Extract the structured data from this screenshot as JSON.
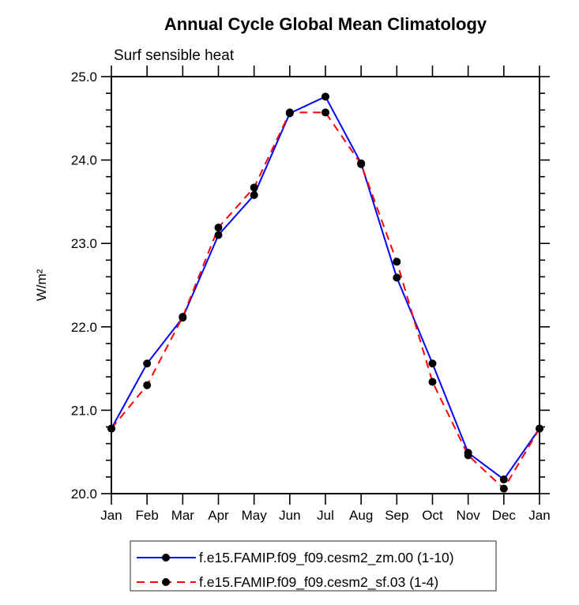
{
  "chart_data": {
    "type": "line",
    "title": "Annual Cycle Global Mean Climatology",
    "subtitle": "Surf sensible heat",
    "ylabel": "W/m²",
    "xlabel": "",
    "x_categories": [
      "Jan",
      "Feb",
      "Mar",
      "Apr",
      "May",
      "Jun",
      "Jul",
      "Aug",
      "Sep",
      "Oct",
      "Nov",
      "Dec",
      "Jan"
    ],
    "ylim": [
      20.0,
      25.0
    ],
    "y_major_ticks": [
      20.0,
      21.0,
      22.0,
      23.0,
      24.0,
      25.0
    ],
    "y_major_tick_labels": [
      "20.0",
      "21.0",
      "22.0",
      "23.0",
      "24.0",
      "25.0"
    ],
    "y_minor_tick_step": 0.2,
    "grid": false,
    "axis_color": "#000000",
    "marker_color": "#000000",
    "legend_position": "bottom",
    "series": [
      {
        "name": "f.e15.FAMIP.f09_f09.cesm2_zm.00 (1-10)",
        "color": "#0000ff",
        "line_style": "solid",
        "marker": "filled-circle",
        "values": [
          20.78,
          21.56,
          22.11,
          23.1,
          23.58,
          24.56,
          24.76,
          23.96,
          22.59,
          21.56,
          20.49,
          20.17,
          20.78
        ]
      },
      {
        "name": "f.e15.FAMIP.f09_f09.cesm2_sf.03 (1-4)",
        "color": "#ff0000",
        "line_style": "dashed",
        "marker": "filled-circle",
        "values": [
          20.78,
          21.3,
          22.12,
          23.19,
          23.67,
          24.57,
          24.57,
          23.95,
          22.78,
          21.34,
          20.46,
          20.06,
          20.78
        ]
      }
    ]
  }
}
